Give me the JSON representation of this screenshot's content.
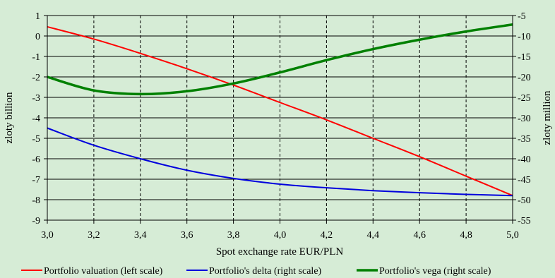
{
  "chart_data": {
    "type": "line",
    "title": "",
    "xlabel": "Spot exchange rate EUR/PLN",
    "ylabel_left": "zloty billion",
    "ylabel_right": "zloty million",
    "xlim": [
      3.0,
      5.0
    ],
    "ylim_left": [
      -9,
      1
    ],
    "ylim_right": [
      -55,
      -5
    ],
    "x_ticks": [
      "3,0",
      "3,2",
      "3,4",
      "3,6",
      "3,8",
      "4,0",
      "4,2",
      "4,4",
      "4,6",
      "4,8",
      "5,0"
    ],
    "y_left_ticks": [
      "1",
      "0",
      "-1",
      "-2",
      "-3",
      "-4",
      "-5",
      "-6",
      "-7",
      "-8",
      "-9"
    ],
    "y_right_ticks": [
      "-5",
      "-10",
      "-15",
      "-20",
      "-25",
      "-30",
      "-35",
      "-40",
      "-45",
      "-50",
      "-55"
    ],
    "grid": {
      "horizontal": "solid",
      "vertical": "dashed"
    },
    "legend_position": "bottom",
    "x": [
      3.0,
      3.2,
      3.4,
      3.6,
      3.8,
      4.0,
      4.2,
      4.4,
      4.6,
      4.8,
      5.0
    ],
    "series": [
      {
        "name": "Portfolio valuation (left scale)",
        "axis": "left",
        "color": "#ff0000",
        "stroke": 2,
        "values": [
          0.45,
          -0.15,
          -0.85,
          -1.6,
          -2.4,
          -3.25,
          -4.1,
          -5.0,
          -5.9,
          -6.85,
          -7.8
        ]
      },
      {
        "name": "Portfolio's delta (right scale)",
        "axis": "right",
        "color": "#0000dd",
        "stroke": 2,
        "values": [
          -32.5,
          -36.7,
          -40.0,
          -42.8,
          -44.8,
          -46.2,
          -47.1,
          -47.8,
          -48.3,
          -48.7,
          -49.0
        ]
      },
      {
        "name": "Portfolio's vega (right scale)",
        "axis": "right",
        "color": "#008000",
        "stroke": 3.5,
        "values": [
          -20.0,
          -23.3,
          -24.2,
          -23.5,
          -21.6,
          -18.9,
          -15.9,
          -13.2,
          -10.9,
          -8.9,
          -7.2
        ]
      }
    ]
  }
}
